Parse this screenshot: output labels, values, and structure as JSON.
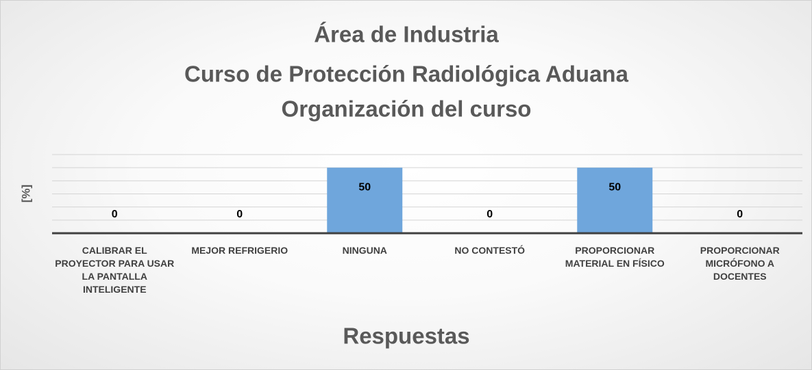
{
  "chart_data": {
    "type": "bar",
    "title": [
      "Área de Industria",
      "Curso de Protección Radiológica Aduana",
      "Organización del curso"
    ],
    "y_label": "[%]",
    "x_label": "Respuestas",
    "categories": [
      "CALIBRAR EL PROYECTOR PARA USAR LA PANTALLA INTELIGENTE",
      "MEJOR REFRIGERIO",
      "NINGUNA",
      "NO CONTESTÓ",
      "PROPORCIONAR MATERIAL EN FÍSICO",
      "PROPORCIONAR MICRÓFONO A DOCENTES"
    ],
    "values": [
      0,
      0,
      50,
      0,
      50,
      0
    ],
    "color": "#6fa6dc",
    "ylim": [
      0,
      60
    ],
    "yticks": [
      0,
      10,
      20,
      30,
      40,
      50,
      60
    ],
    "grid": true
  }
}
